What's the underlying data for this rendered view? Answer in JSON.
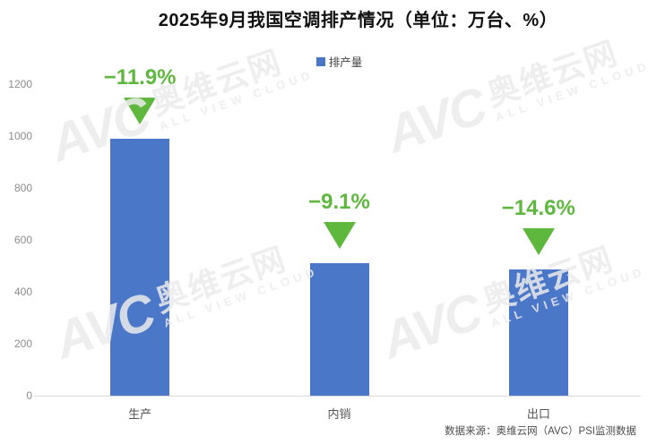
{
  "chart_data": {
    "type": "bar",
    "title": "2025年9月我国空调排产情况（单位：万台、%）",
    "categories": [
      "生产",
      "内销",
      "出口"
    ],
    "series": [
      {
        "name": "排产量",
        "values": [
          990,
          510,
          485
        ]
      }
    ],
    "growth_labels": [
      "−11.9%",
      "−9.1%",
      "−14.6%"
    ],
    "yticks": [
      0,
      200,
      400,
      600,
      800,
      1000,
      1200
    ],
    "ylim": [
      0,
      1200
    ],
    "xlabel": "",
    "ylabel": "",
    "grid": false,
    "legend_position": "top-center",
    "bar_color": "#4a77c8",
    "growth_color": "#5fb83e",
    "axis_line_color": "#d9d9d9"
  },
  "watermark": {
    "brand": "AVC",
    "brand_cn": "奥维云网",
    "brand_en": "ALL VIEW CLOUD"
  },
  "footer": {
    "source": "数据来源：奥维云网（AVC）PSI监测数据"
  }
}
